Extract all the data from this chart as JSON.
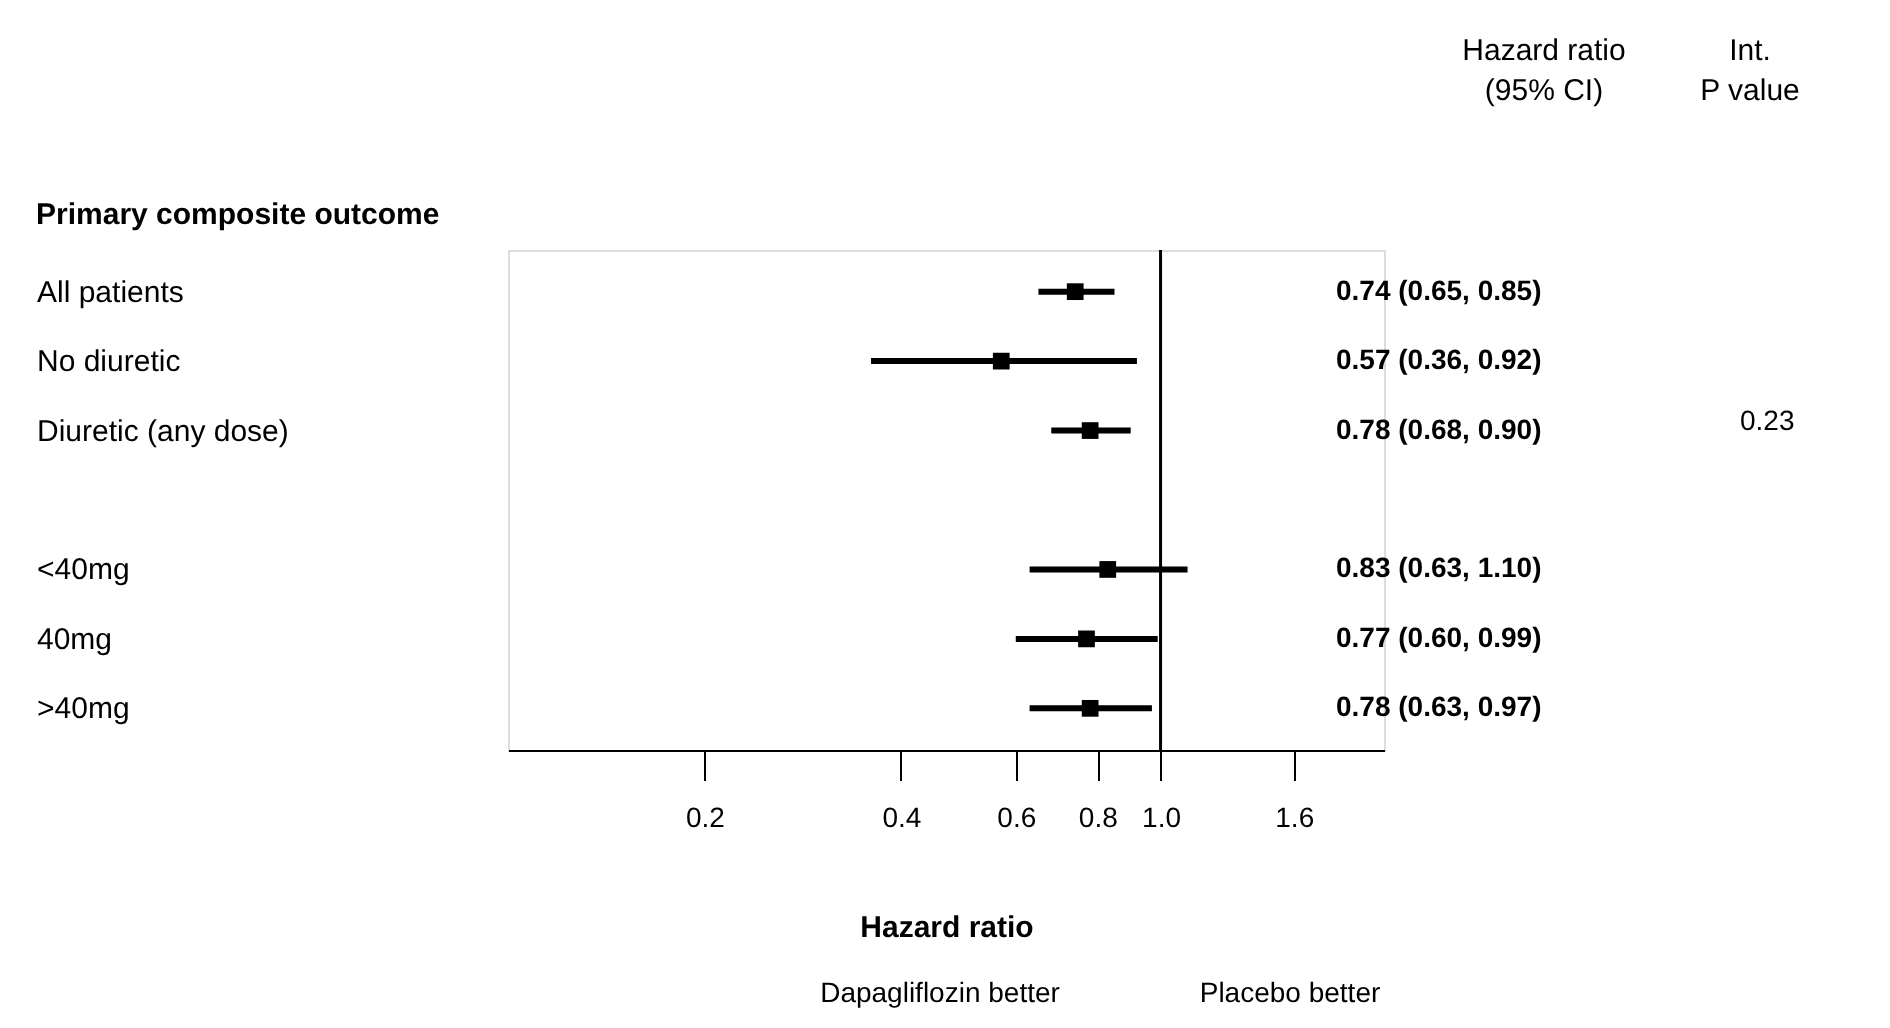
{
  "chart_data": {
    "type": "scatter",
    "orientation": "horizontal",
    "log": "x",
    "categories": [
      "All patients",
      "No diuretic",
      "Diuretic (any dose)",
      null,
      "<40mg",
      "40mg",
      ">40mg"
    ],
    "values": [
      0.74,
      0.57,
      0.78,
      null,
      0.83,
      0.77,
      0.78
    ],
    "errors": [
      [
        0.65,
        0.85
      ],
      [
        0.36,
        0.92
      ],
      [
        0.68,
        0.9
      ],
      null,
      [
        0.63,
        1.1
      ],
      [
        0.6,
        0.99
      ],
      [
        0.63,
        0.97
      ]
    ],
    "value_labels": [
      "0.74 (0.65, 0.85)",
      "0.57 (0.36, 0.92)",
      "0.78 (0.68, 0.90)",
      null,
      "0.83 (0.63, 1.10)",
      "0.77 (0.60, 0.99)",
      "0.78 (0.63, 0.97)"
    ],
    "color": "#000000",
    "marker": "square",
    "xlabel": "Hazard ratio",
    "xlim": [
      0.1,
      2.2
    ],
    "xticks": [
      0.2,
      0.4,
      0.6,
      0.8,
      {
        "value": 1,
        "label": "1.0"
      },
      1.6
    ],
    "ref_lines": [
      {
        "axis": "x",
        "value": 1
      }
    ],
    "grid": false,
    "annotations": [
      "Hazard ratio\n(95% CI)",
      "Int.\nP value",
      "Primary composite outcome",
      "0.23",
      "Dapagliflozin better",
      "Placebo better"
    ]
  }
}
